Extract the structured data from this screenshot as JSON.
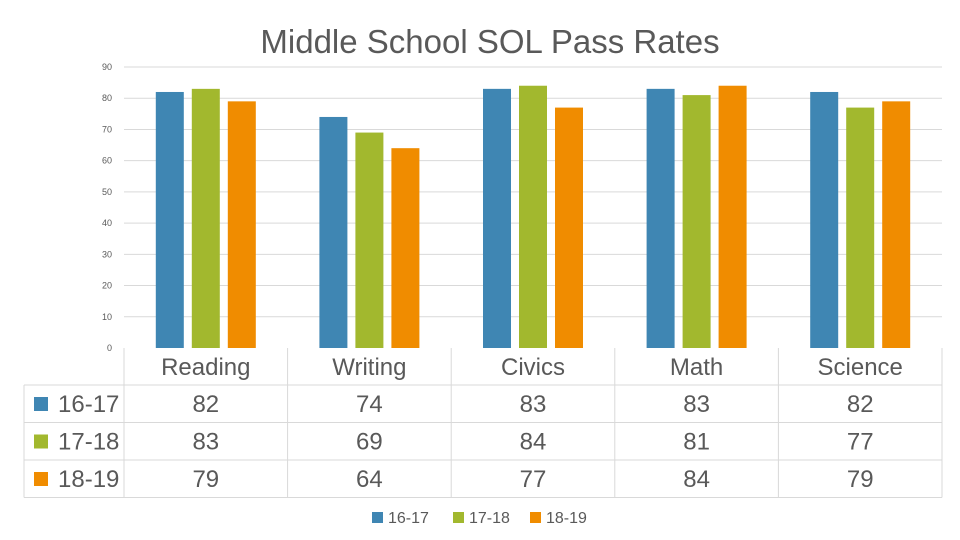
{
  "chart_data": {
    "type": "bar",
    "title": "Middle School SOL Pass Rates",
    "categories": [
      "Reading",
      "Writing",
      "Civics",
      "Math",
      "Science"
    ],
    "series": [
      {
        "name": "16-17",
        "color": "#3f86b3",
        "values": [
          82,
          74,
          83,
          83,
          82
        ]
      },
      {
        "name": "17-18",
        "color": "#a2b82e",
        "values": [
          83,
          69,
          84,
          81,
          77
        ]
      },
      {
        "name": "18-19",
        "color": "#f08c00",
        "values": [
          79,
          64,
          77,
          84,
          79
        ]
      }
    ],
    "yticks": [
      0,
      10,
      20,
      30,
      40,
      50,
      60,
      70,
      80,
      90
    ],
    "ylim": [
      0,
      90
    ],
    "grid": true,
    "legend": "bottom",
    "data_table": true
  }
}
